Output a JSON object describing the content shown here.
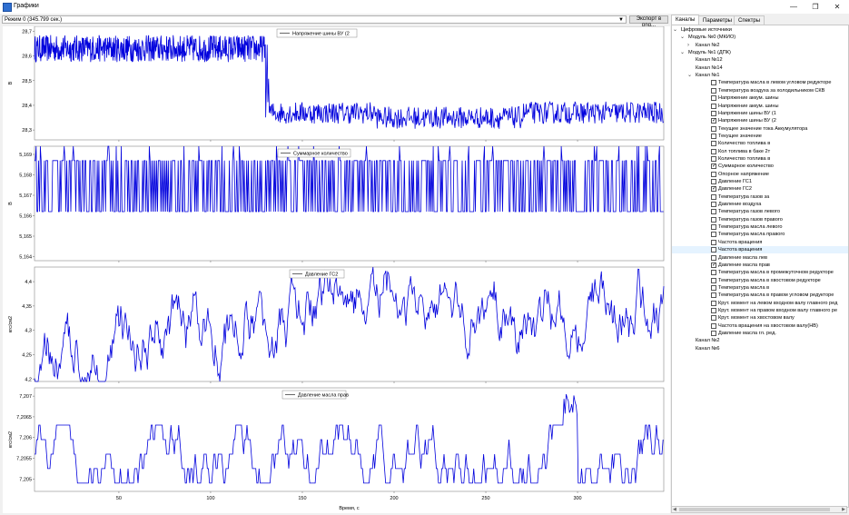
{
  "window": {
    "title": "Графики",
    "minimize_glyph": "—",
    "maximize_glyph": "❐",
    "close_glyph": "✕"
  },
  "toolbar": {
    "mode": "Режим 0 (345.799 сек.)",
    "export_label": "Экспорт в png..."
  },
  "tabs": [
    "Каналы",
    "Параметры",
    "Спектры"
  ],
  "tree": [
    {
      "label": "Цифровые источники",
      "level": 0,
      "chevron": "down"
    },
    {
      "label": "Модуль №0 (МКИО)",
      "level": 1,
      "chevron": "down"
    },
    {
      "label": "Канал №2",
      "level": 2,
      "chevron": "right"
    },
    {
      "label": "Модуль №1 (ДПК)",
      "level": 1,
      "chevron": "down"
    },
    {
      "label": "Канал №12",
      "level": 2
    },
    {
      "label": "Канал №14",
      "level": 2
    },
    {
      "label": "Канал №1",
      "level": 2,
      "chevron": "down"
    },
    {
      "label": "Температура масла в левом угловом редукторе",
      "level": 3,
      "checked": false
    },
    {
      "label": "Температура воздуха за холодильником СКВ",
      "level": 3,
      "checked": false
    },
    {
      "label": "Напряжение аккум. шины",
      "level": 3,
      "checked": false
    },
    {
      "label": "Напряжение аккум. шины",
      "level": 3,
      "checked": false
    },
    {
      "label": "Напряжение шины ВУ (1",
      "level": 3,
      "checked": false
    },
    {
      "label": "Напряжение шины ВУ (2",
      "level": 3,
      "checked": true
    },
    {
      "label": "Текущее значение тока Аккумулятора",
      "level": 3,
      "checked": false
    },
    {
      "label": "Текущее значение",
      "level": 3,
      "checked": false
    },
    {
      "label": "Количество топлива в",
      "level": 3,
      "checked": false
    },
    {
      "label": "Кол топлива в баке 2т",
      "level": 3,
      "checked": false
    },
    {
      "label": "Количество топлива в",
      "level": 3,
      "checked": false
    },
    {
      "label": "Суммарное количество",
      "level": 3,
      "checked": true
    },
    {
      "label": "Опорное напряжение",
      "level": 3,
      "checked": false
    },
    {
      "label": "Давление ГС1",
      "level": 3,
      "checked": false
    },
    {
      "label": "Давление ГС2",
      "level": 3,
      "checked": true
    },
    {
      "label": "Температура газов за",
      "level": 3,
      "checked": false
    },
    {
      "label": "Давление воздуха",
      "level": 3,
      "checked": false
    },
    {
      "label": "Температура газов левого",
      "level": 3,
      "checked": false
    },
    {
      "label": "Температура газов правого",
      "level": 3,
      "checked": false
    },
    {
      "label": "Температура масла левого",
      "level": 3,
      "checked": false
    },
    {
      "label": "Температура масла правого",
      "level": 3,
      "checked": false
    },
    {
      "label": "Частота вращения",
      "level": 3,
      "checked": false
    },
    {
      "label": "Частота вращения",
      "level": 3,
      "checked": false,
      "selected": true
    },
    {
      "label": "Давление масла лев",
      "level": 3,
      "checked": false
    },
    {
      "label": "Давление масла прав",
      "level": 3,
      "checked": true
    },
    {
      "label": "Температура масла в промежуточном редукторе",
      "level": 3,
      "checked": false
    },
    {
      "label": "Температура масла в хвостовом редукторе",
      "level": 3,
      "checked": false
    },
    {
      "label": "Температура масла в",
      "level": 3,
      "checked": false
    },
    {
      "label": "Температура масла в правом угловом редукторе",
      "level": 3,
      "checked": false
    },
    {
      "label": "Крут. момент на левом входном валу главного ред",
      "level": 3,
      "checked": false
    },
    {
      "label": "Крут. момент на правом входном валу главного ре",
      "level": 3,
      "checked": false
    },
    {
      "label": "Крут. момент на хвостовом валу",
      "level": 3,
      "checked": false
    },
    {
      "label": "Частота вращения на хвостовом валу(НВ)",
      "level": 3,
      "checked": false
    },
    {
      "label": "Давление масла гл. ред.",
      "level": 3,
      "checked": false
    },
    {
      "label": "Канал №2",
      "level": 2
    },
    {
      "label": "Канал №6",
      "level": 2
    }
  ],
  "chart_data": [
    {
      "type": "line",
      "legend": "Напряжение шины ВУ (2",
      "ylabel": "В",
      "ylim": [
        28.26,
        28.72
      ],
      "yticks": [
        28.7,
        28.6,
        28.5,
        28.4,
        28.3
      ],
      "ytick_labels": [
        "28,7",
        "28,6",
        "28,5",
        "28,4",
        "28,3"
      ],
      "xlim": [
        4,
        347
      ],
      "color": "#0000dd",
      "series": [
        {
          "segments": [
            {
              "x": [
                4,
                130
              ],
              "mean": 28.63,
              "amp": 0.055,
              "noise": "high",
              "step": 0.2
            },
            {
              "x": [
                130,
                132
              ],
              "mean": 28.5,
              "amp": 0.15,
              "step": 0.4
            },
            {
              "x": [
                132,
                347
              ],
              "mean": 28.37,
              "amp": 0.045,
              "noise": "high",
              "step": 0.35,
              "dip": [
                [
                  190,
                  270,
                  -0.02
                ]
              ]
            }
          ]
        }
      ]
    },
    {
      "type": "line",
      "legend": "Суммарное количество",
      "ylabel": "В",
      "ylim": [
        5.1638,
        5.1694
      ],
      "yticks": [
        5.169,
        5.168,
        5.167,
        5.166,
        5.165,
        5.164
      ],
      "ytick_labels": [
        "5,169",
        "5,168",
        "5,167",
        "5,166",
        "5,165",
        "5,164"
      ],
      "xlim": [
        4,
        347
      ],
      "color": "#0000dd",
      "series": [
        {
          "levels": [
            5.1687,
            5.1662
          ],
          "spikes_up": 5.1697,
          "spikes_down": 5.164
        }
      ]
    },
    {
      "type": "line",
      "legend": "Давление ГС2",
      "ylabel": "кгс/см2",
      "ylim": [
        4.195,
        4.43
      ],
      "yticks": [
        4.4,
        4.35,
        4.3,
        4.25,
        4.2
      ],
      "ytick_labels": [
        "4,4",
        "4,35",
        "4,3",
        "4,25",
        "4,2"
      ],
      "xlim": [
        4,
        347
      ],
      "color": "#0000dd",
      "series": [
        {
          "trend": [
            [
              4,
              4.21
            ],
            [
              40,
              4.27
            ],
            [
              80,
              4.3
            ],
            [
              140,
              4.31
            ],
            [
              170,
              4.37
            ],
            [
              220,
              4.32
            ],
            [
              300,
              4.33
            ],
            [
              347,
              4.35
            ]
          ],
          "amp": 0.04
        }
      ]
    },
    {
      "type": "line",
      "legend": "Давление масла прав",
      "ylabel": "кгс/см2",
      "ylim": [
        7.2047,
        7.2072
      ],
      "yticks": [
        7.207,
        7.2065,
        7.206,
        7.2055,
        7.205
      ],
      "ytick_labels": [
        "7,207",
        "7,2065",
        "7,206",
        "7,2055",
        "7,205"
      ],
      "xlabel": "Время, с",
      "xticks": [
        50,
        100,
        150,
        200,
        250,
        300
      ],
      "xtick_labels": [
        "50",
        "100",
        "150",
        "200",
        "250",
        "300"
      ],
      "xlim": [
        4,
        347
      ],
      "color": "#0000dd",
      "series": [
        {
          "levels": [
            7.2049,
            7.20525,
            7.2056,
            7.20595,
            7.2063
          ],
          "base": 7.2057,
          "spike": [
            [
              296,
              7.2071
            ]
          ]
        }
      ]
    }
  ]
}
